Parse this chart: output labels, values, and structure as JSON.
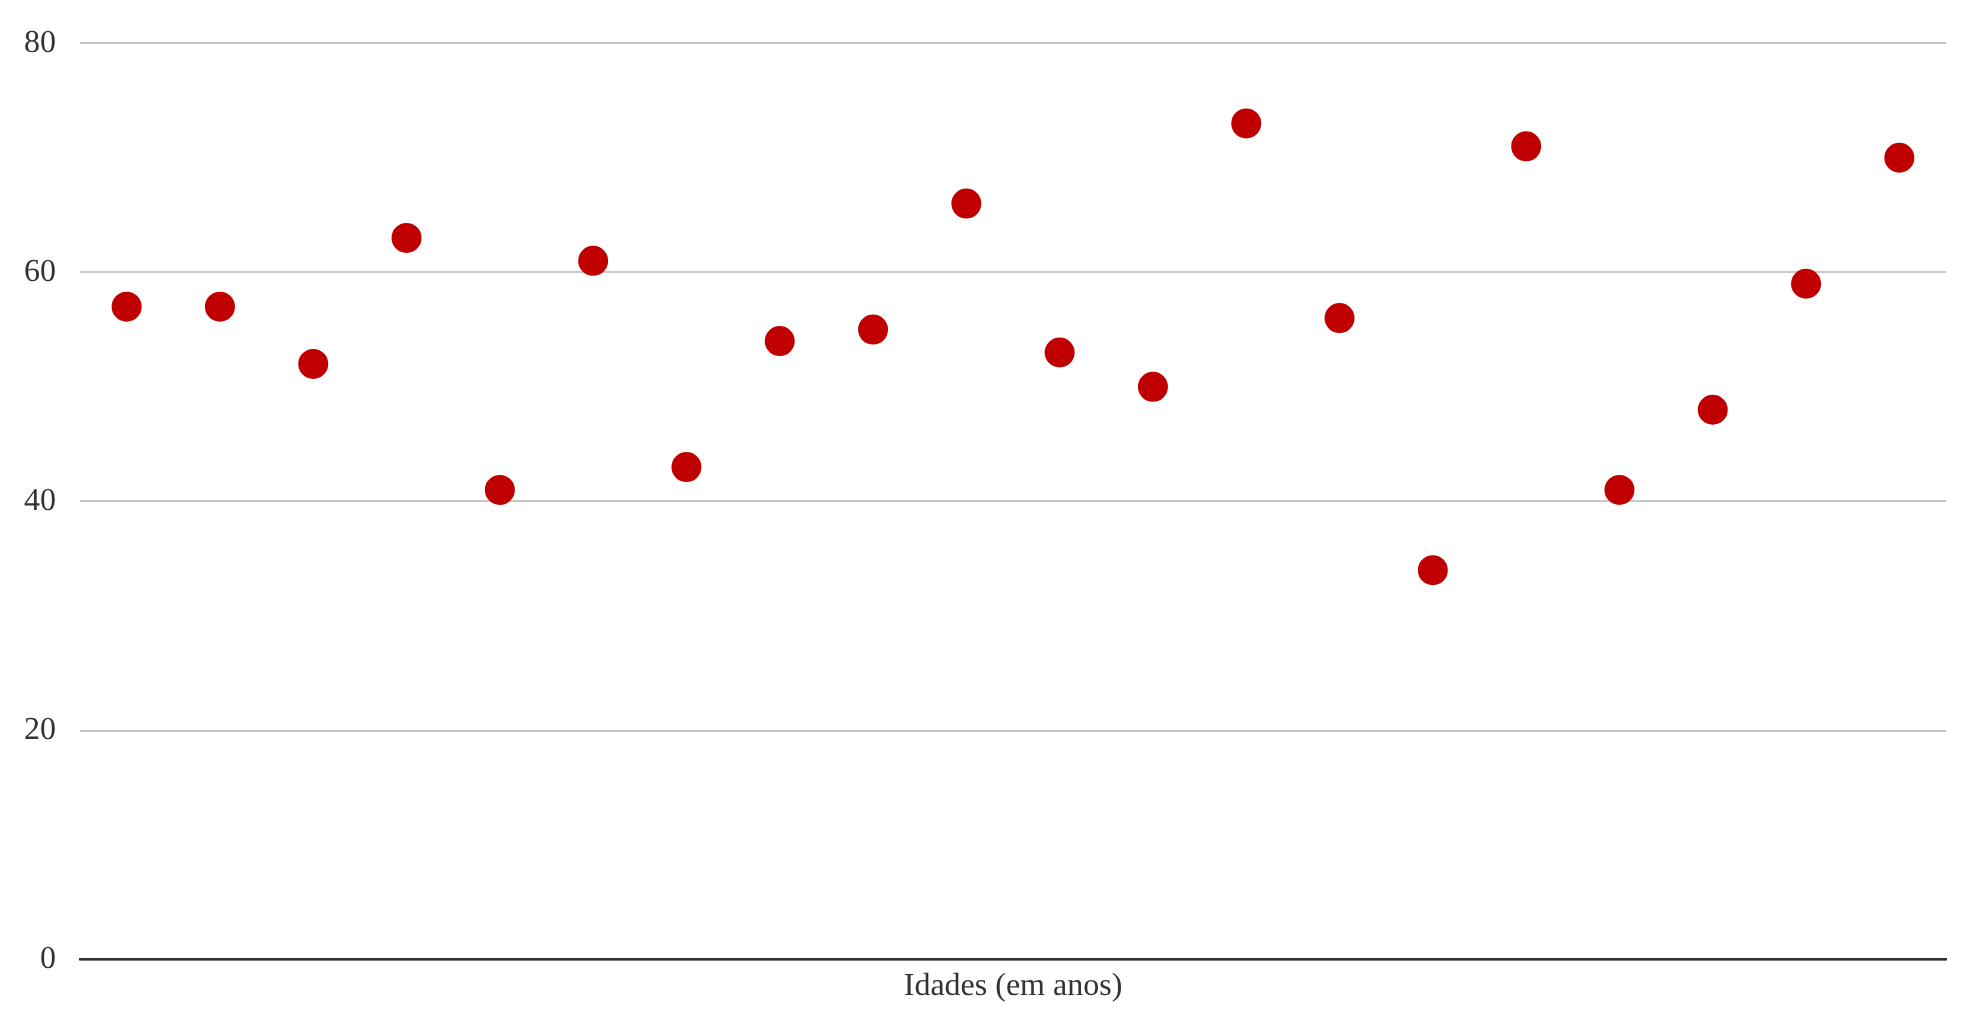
{
  "chart_data": {
    "type": "scatter",
    "xlabel": "Idades (em anos)",
    "categories": [
      null,
      null,
      null,
      null,
      null,
      null,
      null,
      null,
      null,
      null,
      null,
      null,
      null,
      null,
      null,
      null,
      null,
      null,
      null,
      null
    ],
    "values": [
      57,
      57,
      52,
      63,
      41,
      61,
      43,
      54,
      55,
      66,
      53,
      50,
      73,
      56,
      34,
      71,
      41,
      48,
      59,
      70
    ],
    "color": "#c00000",
    "marker": "circle",
    "ylim": [
      0,
      80
    ],
    "yticks": [
      0,
      20,
      40,
      60,
      80
    ],
    "grid": "y"
  }
}
